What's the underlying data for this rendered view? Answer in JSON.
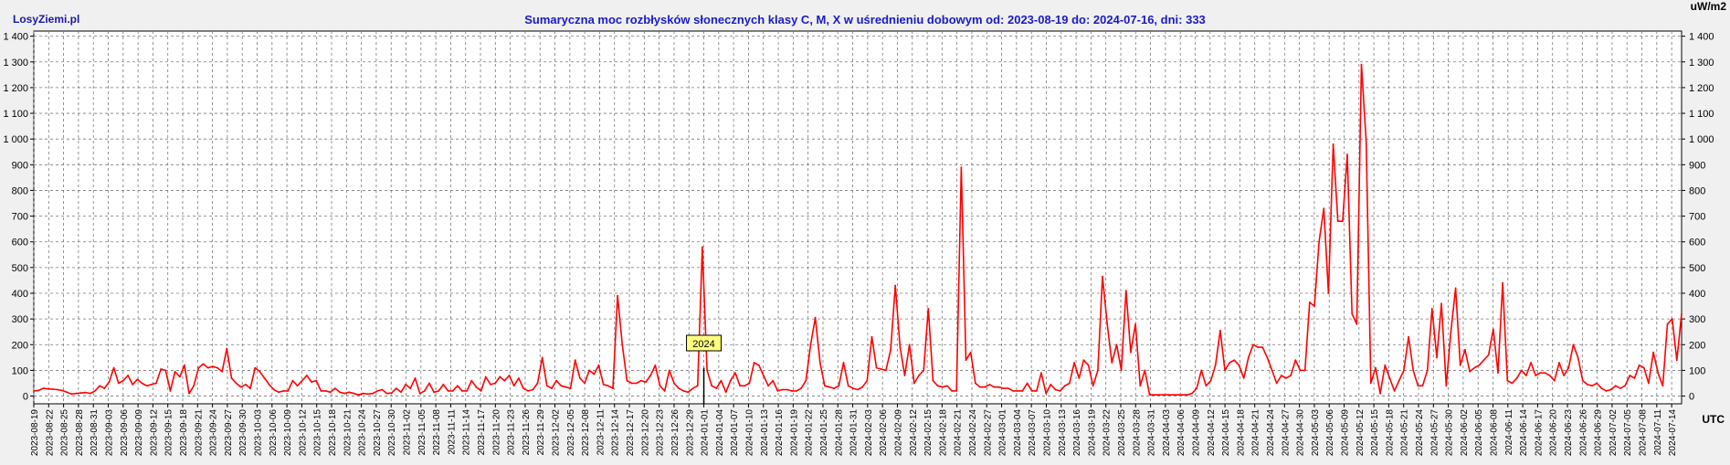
{
  "brand": "LosyZiemi.pl",
  "chart_data": {
    "type": "line",
    "title": "Sumaryczna moc rozbłysków słonecznych klasy C, M, X w uśrednieniu dobowym od: 2023-08-19 do: 2024-07-16, dni: 333",
    "unit_label": "uW/m2",
    "xlabel": "UTC",
    "ylim": [
      -30,
      1420
    ],
    "yticks": [
      "1 400",
      "1 300",
      "1 200",
      "1 100",
      "1 000",
      "900",
      "800",
      "700",
      "600",
      "500",
      "400",
      "300",
      "200",
      "100",
      "0"
    ],
    "ytick_values": [
      1400,
      1300,
      1200,
      1100,
      1000,
      900,
      800,
      700,
      600,
      500,
      400,
      300,
      200,
      100,
      0
    ],
    "x_start": "2023-08-19",
    "x_end": "2024-07-16",
    "x_tick_labels": [
      "2023-08-19",
      "2023-08-22",
      "2023-08-25",
      "2023-08-28",
      "2023-08-31",
      "2023-09-03",
      "2023-09-06",
      "2023-09-09",
      "2023-09-12",
      "2023-09-15",
      "2023-09-18",
      "2023-09-21",
      "2023-09-24",
      "2023-09-27",
      "2023-09-30",
      "2023-10-03",
      "2023-10-06",
      "2023-10-09",
      "2023-10-12",
      "2023-10-15",
      "2023-10-18",
      "2023-10-21",
      "2023-10-24",
      "2023-10-27",
      "2023-10-30",
      "2023-11-02",
      "2023-11-05",
      "2023-11-08",
      "2023-11-11",
      "2023-11-14",
      "2023-11-17",
      "2023-11-20",
      "2023-11-23",
      "2023-11-26",
      "2023-11-29",
      "2023-12-02",
      "2023-12-05",
      "2023-12-08",
      "2023-12-11",
      "2023-12-14",
      "2023-12-17",
      "2023-12-20",
      "2023-12-23",
      "2023-12-26",
      "2023-12-29",
      "2024-01-01",
      "2024-01-04",
      "2024-01-07",
      "2024-01-10",
      "2024-01-13",
      "2024-01-16",
      "2024-01-19",
      "2024-01-22",
      "2024-01-25",
      "2024-01-28",
      "2024-01-31",
      "2024-02-03",
      "2024-02-06",
      "2024-02-09",
      "2024-02-12",
      "2024-02-15",
      "2024-02-18",
      "2024-02-21",
      "2024-02-24",
      "2024-02-27",
      "2024-03-01",
      "2024-03-04",
      "2024-03-07",
      "2024-03-10",
      "2024-03-13",
      "2024-03-16",
      "2024-03-19",
      "2024-03-22",
      "2024-03-25",
      "2024-03-28",
      "2024-03-31",
      "2024-04-03",
      "2024-04-06",
      "2024-04-09",
      "2024-04-12",
      "2024-04-15",
      "2024-04-18",
      "2024-04-21",
      "2024-04-24",
      "2024-04-27",
      "2024-04-30",
      "2024-05-03",
      "2024-05-06",
      "2024-05-09",
      "2024-05-12",
      "2024-05-15",
      "2024-05-18",
      "2024-05-21",
      "2024-05-24",
      "2024-05-27",
      "2024-05-30",
      "2024-06-02",
      "2024-06-05",
      "2024-06-08",
      "2024-06-11",
      "2024-06-14",
      "2024-06-17",
      "2024-06-20",
      "2024-06-23",
      "2024-06-26",
      "2024-06-29",
      "2024-07-02",
      "2024-07-05",
      "2024-07-08",
      "2024-07-11",
      "2024-07-14"
    ],
    "year_marker": {
      "label": "2024",
      "date": "2024-01-01"
    },
    "grid": true,
    "line_color": "#ff0000",
    "series": [
      {
        "values": [
          20,
          22,
          30,
          28,
          27,
          25,
          22,
          15,
          8,
          10,
          12,
          14,
          10,
          20,
          40,
          30,
          55,
          110,
          50,
          60,
          80,
          45,
          65,
          50,
          40,
          45,
          50,
          105,
          100,
          20,
          95,
          75,
          120,
          10,
          40,
          110,
          125,
          110,
          115,
          110,
          95,
          185,
          70,
          50,
          35,
          45,
          30,
          110,
          95,
          70,
          45,
          25,
          15,
          20,
          20,
          60,
          40,
          60,
          80,
          55,
          60,
          20,
          20,
          15,
          30,
          15,
          10,
          15,
          10,
          5,
          10,
          8,
          10,
          20,
          25,
          10,
          12,
          30,
          15,
          45,
          30,
          70,
          10,
          20,
          50,
          15,
          20,
          45,
          20,
          20,
          40,
          20,
          20,
          60,
          35,
          20,
          75,
          45,
          50,
          75,
          60,
          80,
          40,
          70,
          30,
          20,
          25,
          50,
          150,
          40,
          30,
          60,
          40,
          35,
          30,
          140,
          70,
          50,
          100,
          85,
          120,
          45,
          40,
          30,
          390,
          200,
          60,
          50,
          50,
          60,
          55,
          80,
          120,
          40,
          20,
          100,
          50,
          30,
          20,
          15,
          30,
          40,
          580,
          100,
          40,
          30,
          60,
          15,
          60,
          90,
          40,
          40,
          50,
          130,
          120,
          80,
          40,
          60,
          20,
          25,
          25,
          20,
          20,
          30,
          60,
          200,
          305,
          130,
          40,
          35,
          30,
          40,
          130,
          40,
          30,
          25,
          35,
          60,
          230,
          110,
          105,
          100,
          180,
          430,
          190,
          80,
          200,
          50,
          80,
          100,
          340,
          60,
          40,
          35,
          40,
          20,
          20,
          890,
          140,
          170,
          50,
          35,
          35,
          45,
          35,
          35,
          30,
          30,
          20,
          20,
          20,
          50,
          20,
          20,
          90,
          10,
          45,
          25,
          20,
          40,
          50,
          130,
          70,
          140,
          120,
          40,
          100,
          465,
          280,
          130,
          200,
          100,
          410,
          170,
          280,
          40,
          100,
          5,
          5,
          5,
          5,
          5,
          5,
          5,
          5,
          5,
          10,
          30,
          100,
          40,
          60,
          120,
          255,
          100,
          130,
          140,
          120,
          70,
          150,
          200,
          190,
          190,
          150,
          100,
          50,
          80,
          70,
          80,
          140,
          100,
          100,
          365,
          350,
          600,
          730,
          400,
          980,
          680,
          680,
          940,
          320,
          280,
          1290,
          990,
          50,
          110,
          10,
          120,
          70,
          20,
          60,
          100,
          230,
          100,
          40,
          40,
          100,
          340,
          150,
          360,
          40,
          250,
          420,
          120,
          180,
          95,
          110,
          120,
          140,
          160,
          260,
          90,
          440,
          60,
          50,
          70,
          100,
          80,
          130,
          80,
          90,
          90,
          80,
          60,
          130,
          80,
          110,
          200,
          150,
          60,
          45,
          40,
          50,
          30,
          20,
          25,
          40,
          30,
          40,
          80,
          70,
          120,
          110,
          50,
          170,
          90,
          40,
          280,
          300,
          140,
          320
        ]
      }
    ]
  }
}
